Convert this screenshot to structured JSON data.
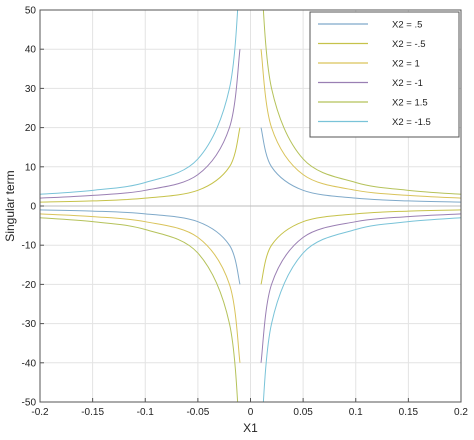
{
  "chart_data": {
    "type": "line",
    "title": "",
    "xlabel": "X1",
    "ylabel": "Singular term",
    "xlim": [
      -0.2,
      0.2
    ],
    "ylim": [
      -50,
      50
    ],
    "xticks": [
      -0.2,
      -0.15,
      -0.1,
      -0.05,
      0,
      0.05,
      0.1,
      0.15,
      0.2
    ],
    "xtick_labels": [
      "-0.2",
      "-0.15",
      "-0.1",
      "-0.05",
      "0",
      "0.05",
      "0.1",
      "0.15",
      "0.2"
    ],
    "yticks": [
      -50,
      -40,
      -30,
      -20,
      -10,
      0,
      10,
      20,
      30,
      40,
      50
    ],
    "ytick_labels": [
      "-50",
      "-40",
      "-30",
      "-20",
      "-10",
      "0",
      "10",
      "20",
      "30",
      "40",
      "50"
    ],
    "grid": true,
    "legend_position": "top-right",
    "x": [
      -0.2,
      -0.15,
      -0.1,
      -0.05,
      -0.02,
      -0.01,
      0.01,
      0.02,
      0.05,
      0.1,
      0.15,
      0.2
    ],
    "series": [
      {
        "name": "X2 = .5",
        "color": "#7fa9c9",
        "values": [
          -1.0,
          -1.3,
          -2.0,
          -4.0,
          -10.0,
          -20.0,
          20.0,
          10.0,
          4.0,
          2.0,
          1.3,
          1.0
        ]
      },
      {
        "name": "X2 = -.5",
        "color": "#c6c24a",
        "values": [
          1.0,
          1.3,
          2.0,
          4.0,
          10.0,
          20.0,
          -20.0,
          -10.0,
          -4.0,
          -2.0,
          -1.3,
          -1.0
        ]
      },
      {
        "name": "X2 = 1",
        "color": "#d9c35a",
        "values": [
          -2.0,
          -2.7,
          -4.0,
          -8.0,
          -20.0,
          -40.0,
          40.0,
          20.0,
          8.0,
          4.0,
          2.7,
          2.0
        ]
      },
      {
        "name": "X2 = -1",
        "color": "#9a7fb3",
        "values": [
          2.0,
          2.7,
          4.0,
          8.0,
          20.0,
          40.0,
          -40.0,
          -20.0,
          -8.0,
          -4.0,
          -2.7,
          -2.0
        ]
      },
      {
        "name": "X2 = 1.5",
        "color": "#b5c25a",
        "values": [
          -3.0,
          -4.0,
          -6.0,
          -12.0,
          -30.0,
          -60.0,
          60.0,
          30.0,
          12.0,
          6.0,
          4.0,
          3.0
        ]
      },
      {
        "name": "X2 = -1.5",
        "color": "#79c3d8",
        "values": [
          3.0,
          4.0,
          6.0,
          12.0,
          30.0,
          60.0,
          -60.0,
          -30.0,
          -12.0,
          -6.0,
          -4.0,
          -3.0
        ]
      }
    ]
  }
}
